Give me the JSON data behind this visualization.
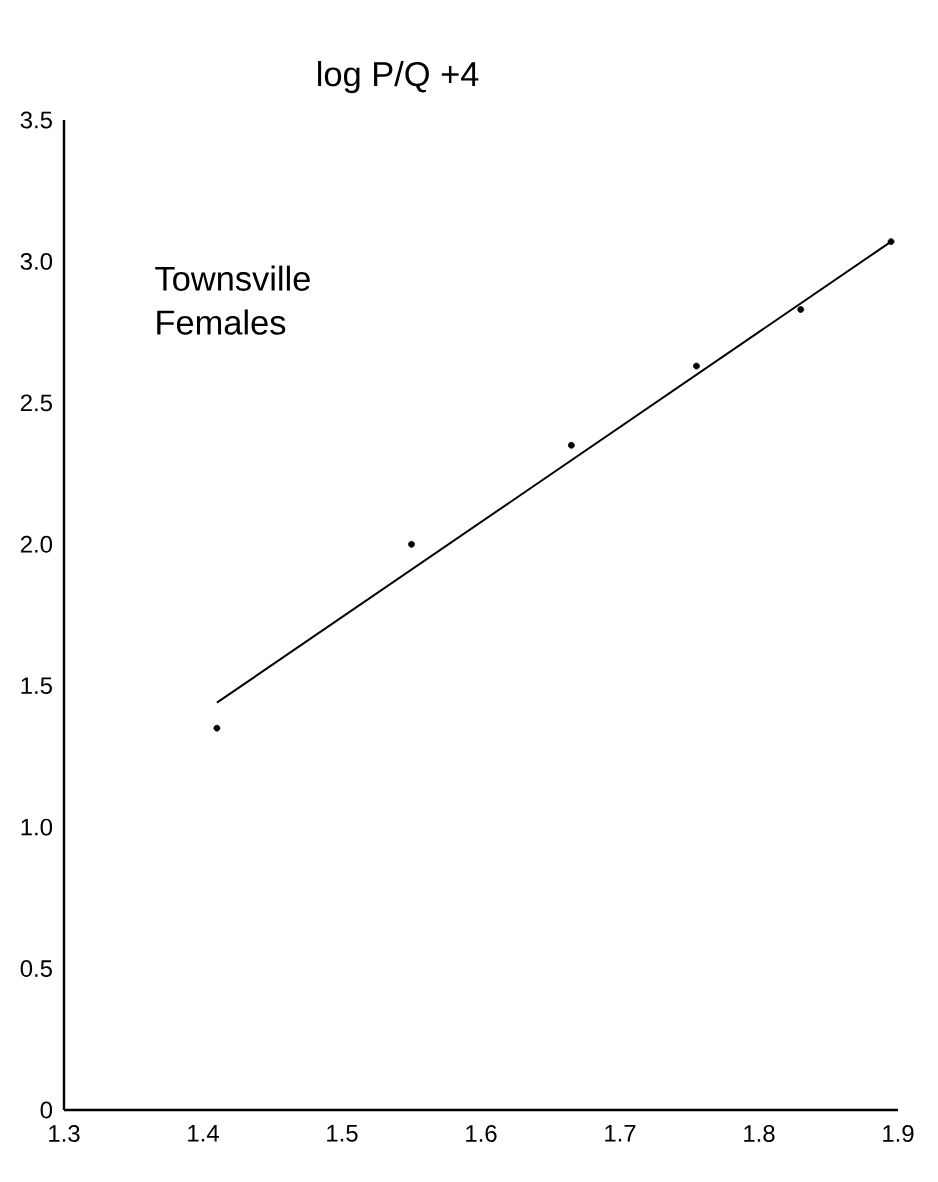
{
  "chart_data": {
    "type": "scatter",
    "ylabel": "log P/Q +4",
    "annotations": [
      "Townsville Females"
    ],
    "xlim": [
      1.3,
      1.9
    ],
    "ylim": [
      0,
      3.5
    ],
    "xticks": [
      {
        "value": 1.3,
        "label": "1.3"
      },
      {
        "value": 1.4,
        "label": "1.4"
      },
      {
        "value": 1.5,
        "label": "1.5"
      },
      {
        "value": 1.6,
        "label": "1.6"
      },
      {
        "value": 1.7,
        "label": "1.7"
      },
      {
        "value": 1.8,
        "label": "1.8"
      },
      {
        "value": 1.9,
        "label": "1.9"
      }
    ],
    "yticks": [
      {
        "value": 0,
        "label": "0"
      },
      {
        "value": 0.5,
        "label": "0.5"
      },
      {
        "value": 1.0,
        "label": "1.0"
      },
      {
        "value": 1.5,
        "label": "1.5"
      },
      {
        "value": 2.0,
        "label": "2.0"
      },
      {
        "value": 2.5,
        "label": "2.5"
      },
      {
        "value": 3.0,
        "label": "3.0"
      },
      {
        "value": 3.5,
        "label": "3.5"
      }
    ],
    "series": [
      {
        "color": "#000000",
        "marker": "circle",
        "x": [
          1.41,
          1.55,
          1.665,
          1.755,
          1.83,
          1.895
        ],
        "values": [
          1.35,
          2.0,
          2.35,
          2.63,
          2.83,
          3.07
        ]
      },
      {
        "type": "line",
        "color": "#000000",
        "marker": "none",
        "line_style": "solid",
        "x": [
          1.41,
          1.895
        ],
        "values": [
          1.44,
          3.07
        ]
      }
    ]
  }
}
